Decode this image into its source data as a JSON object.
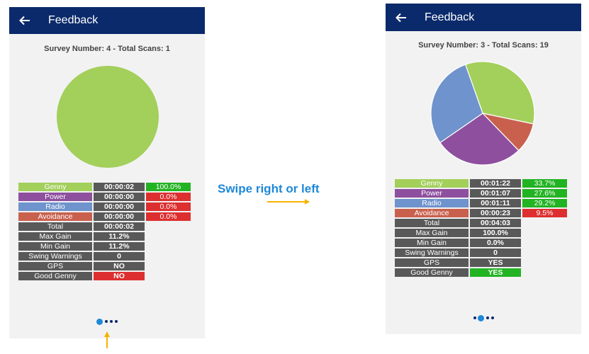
{
  "app_title": "Feedback",
  "swipe_hint": "Swipe right or left",
  "colors": {
    "appbar": "#0b2a6b",
    "genny": "#a3cf5b",
    "power": "#8e4f9e",
    "radio": "#6f93cc",
    "avoidance": "#c9604e",
    "row_gray": "#595959",
    "percent_green": "#22b322",
    "percent_red": "#dd2f2f",
    "arrow": "#f5b400",
    "page_dot": "#1e88d8"
  },
  "screens": [
    {
      "survey_label": "Survey Number: 4 - Total Scans: 1",
      "chart_data": {
        "type": "pie",
        "series": [
          {
            "label": "Genny",
            "value": 100.0,
            "color": "#a3cf5b"
          },
          {
            "label": "Power",
            "value": 0.0,
            "color": "#8e4f9e"
          },
          {
            "label": "Radio",
            "value": 0.0,
            "color": "#6f93cc"
          },
          {
            "label": "Avoidance",
            "value": 0.0,
            "color": "#c9604e"
          }
        ]
      },
      "categories": [
        {
          "label": "Genny",
          "time": "00:00:02",
          "percent": "100.0%",
          "percent_status": "green"
        },
        {
          "label": "Power",
          "time": "00:00:00",
          "percent": "0.0%",
          "percent_status": "red"
        },
        {
          "label": "Radio",
          "time": "00:00:00",
          "percent": "0.0%",
          "percent_status": "red"
        },
        {
          "label": "Avoidance",
          "time": "00:00:00",
          "percent": "0.0%",
          "percent_status": "red"
        }
      ],
      "stats": [
        {
          "label": "Total",
          "value": "00:00:02"
        },
        {
          "label": "Max Gain",
          "value": "11.2%"
        },
        {
          "label": "Min Gain",
          "value": "11.2%"
        },
        {
          "label": "Swing Warnings",
          "value": "0"
        },
        {
          "label": "GPS",
          "value": "NO"
        },
        {
          "label": "Good Genny",
          "value": "NO",
          "status": "red"
        }
      ],
      "pagination": {
        "total": 4,
        "active": 1
      }
    },
    {
      "survey_label": "Survey Number: 3 - Total Scans: 19",
      "chart_data": {
        "type": "pie",
        "series": [
          {
            "label": "Genny",
            "value": 33.7,
            "color": "#a3cf5b"
          },
          {
            "label": "Avoidance",
            "value": 9.5,
            "color": "#c9604e"
          },
          {
            "label": "Power",
            "value": 27.6,
            "color": "#8e4f9e"
          },
          {
            "label": "Radio",
            "value": 29.2,
            "color": "#6f93cc"
          }
        ]
      },
      "categories": [
        {
          "label": "Genny",
          "time": "00:01:22",
          "percent": "33.7%",
          "percent_status": "green"
        },
        {
          "label": "Power",
          "time": "00:01:07",
          "percent": "27.6%",
          "percent_status": "green"
        },
        {
          "label": "Radio",
          "time": "00:01:11",
          "percent": "29.2%",
          "percent_status": "green"
        },
        {
          "label": "Avoidance",
          "time": "00:00:23",
          "percent": "9.5%",
          "percent_status": "red"
        }
      ],
      "stats": [
        {
          "label": "Total",
          "value": "00:04:03"
        },
        {
          "label": "Max Gain",
          "value": "100.0%"
        },
        {
          "label": "Min Gain",
          "value": "0.0%"
        },
        {
          "label": "Swing Warnings",
          "value": "0"
        },
        {
          "label": "GPS",
          "value": "YES"
        },
        {
          "label": "Good Genny",
          "value": "YES",
          "status": "green"
        }
      ],
      "pagination": {
        "total": 4,
        "active": 2
      }
    }
  ]
}
